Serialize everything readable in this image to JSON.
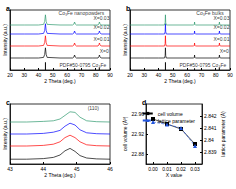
{
  "chart_data": [
    {
      "type": "line",
      "title": "a",
      "x_label": "2 Theta (deg.)",
      "y_label": "Intensity (a.u.)",
      "xlim": [
        20,
        90
      ],
      "xticks": [
        20,
        30,
        40,
        50,
        60,
        70,
        80,
        90
      ],
      "ylim": [
        0,
        100
      ],
      "tick_labels": "x",
      "grid": false,
      "x": [
        20,
        30,
        40,
        43.5,
        44.3,
        44.8,
        45.3,
        46,
        55,
        63.8,
        64.7,
        65.2,
        65.7,
        66.5,
        78,
        81.6,
        82.2,
        82.6,
        83.0,
        83.8,
        90
      ],
      "series": [
        {
          "color": "#000000",
          "values": [
            20,
            20,
            20,
            21,
            26,
            37,
            26,
            21,
            20,
            20,
            21.5,
            25,
            21.5,
            20,
            20,
            20,
            22,
            25,
            22,
            20,
            20
          ]
        },
        {
          "color": "#ff0000",
          "values": [
            40,
            40,
            40,
            41,
            46,
            57,
            46,
            41,
            40,
            40,
            41.5,
            45,
            41.5,
            40,
            40,
            40,
            42,
            45,
            42,
            40,
            40
          ]
        },
        {
          "color": "#0000ff",
          "values": [
            60,
            60,
            60,
            61,
            66,
            77,
            66,
            61,
            60,
            60,
            61.5,
            65,
            61.5,
            60,
            60,
            60,
            62,
            65,
            62,
            60,
            60
          ]
        },
        {
          "color": "#2e9a6e",
          "values": [
            75,
            75,
            75,
            76,
            81,
            92,
            81,
            76,
            75,
            75,
            76.5,
            80,
            76.5,
            75,
            75,
            75,
            77,
            80,
            77,
            75,
            75
          ]
        },
        {
          "type": "bar",
          "color": "#000000",
          "x": [
            44.8,
            65.2,
            82.5
          ],
          "values": [
            13,
            3,
            4
          ]
        }
      ],
      "annotations": [
        {
          "text": "Co₃Fe nanopowders",
          "x": 70,
          "y": 95
        },
        {
          "text": "X=0.03",
          "x": 84,
          "y": 86
        },
        {
          "text": "X=0.02",
          "x": 84,
          "y": 71
        },
        {
          "text": "X=0.01",
          "x": 84,
          "y": 51
        },
        {
          "text": "X=0",
          "x": 86,
          "y": 31
        },
        {
          "text": "PDF#50-0795 Co₃Fe",
          "x": 71,
          "y": 9
        }
      ]
    },
    {
      "type": "line",
      "title": "b",
      "x_label": "2 Theta (deg.)",
      "y_label": "Intensity (a.u.)",
      "xlim": [
        20,
        90
      ],
      "xticks": [
        20,
        30,
        40,
        50,
        60,
        70,
        80,
        90
      ],
      "ylim": [
        0,
        100
      ],
      "tick_labels": "x",
      "grid": false,
      "x": [
        20,
        30,
        40,
        44.2,
        44.6,
        44.8,
        45.0,
        45.4,
        55,
        64.6,
        65.0,
        65.2,
        65.4,
        65.8,
        78,
        82.0,
        82.4,
        82.6,
        82.8,
        83.2,
        90
      ],
      "series": [
        {
          "color": "#000000",
          "values": [
            20,
            20,
            20,
            20,
            24,
            37,
            24,
            20,
            20,
            20,
            21,
            25,
            21,
            20,
            20,
            20,
            21.5,
            25,
            21.5,
            20,
            20
          ]
        },
        {
          "color": "#ff0000",
          "values": [
            40,
            40,
            40,
            40,
            44,
            57,
            44,
            40,
            40,
            40,
            41,
            45,
            41,
            40,
            40,
            40,
            41.5,
            45,
            41.5,
            40,
            40
          ]
        },
        {
          "color": "#0000ff",
          "values": [
            60,
            60,
            60,
            60,
            64,
            77,
            64,
            60,
            60,
            60,
            61,
            65,
            61,
            60,
            60,
            60,
            61.5,
            65,
            61.5,
            60,
            60
          ]
        },
        {
          "color": "#2e9a6e",
          "values": [
            75,
            75,
            75,
            75,
            79,
            92,
            79,
            75,
            75,
            75,
            76,
            80,
            76,
            75,
            75,
            75,
            76.5,
            80,
            76.5,
            75,
            75
          ]
        },
        {
          "type": "bar",
          "color": "#000000",
          "x": [
            44.8,
            65.2,
            82.5
          ],
          "values": [
            13,
            3,
            4
          ]
        }
      ],
      "annotations": [
        {
          "text": "Co₃Fe bulks",
          "x": 76,
          "y": 95
        },
        {
          "text": "X=0.03",
          "x": 84,
          "y": 86
        },
        {
          "text": "X=0.02",
          "x": 84,
          "y": 71
        },
        {
          "text": "X=0.01",
          "x": 84,
          "y": 51
        },
        {
          "text": "X=0",
          "x": 86,
          "y": 31
        },
        {
          "text": "PDF#50-0795 Co₃Fe",
          "x": 71,
          "y": 9
        }
      ]
    },
    {
      "type": "line",
      "title": "c",
      "x_label": "2 Theta (deg.)",
      "y_label": "Intensity (a.u.)",
      "xlim": [
        43,
        46
      ],
      "xticks": [
        43,
        44,
        45,
        46
      ],
      "ylim": [
        0,
        100
      ],
      "tick_labels": "x",
      "grid": false,
      "x": [
        43,
        43.5,
        44,
        44.3,
        44.5,
        44.65,
        44.8,
        44.95,
        45.1,
        45.3,
        45.6,
        46
      ],
      "series": [
        {
          "color": "#000000",
          "values": [
            8,
            8,
            9,
            11,
            15,
            22,
            26,
            21,
            14,
            10,
            8.5,
            8
          ]
        },
        {
          "color": "#ff0000",
          "values": [
            30,
            30,
            31,
            33,
            37,
            44,
            48,
            44,
            37,
            32,
            30.5,
            30
          ]
        },
        {
          "color": "#0000ff",
          "values": [
            50,
            50,
            51,
            53,
            56,
            63,
            68,
            65,
            57,
            52,
            50.5,
            50
          ]
        },
        {
          "color": "#2e9a6e",
          "values": [
            70,
            70,
            71,
            72,
            75,
            81,
            87,
            86,
            78,
            72,
            70.5,
            70
          ]
        }
      ],
      "annotations": [
        {
          "text": "(110)",
          "x": 45.5,
          "y": 93
        }
      ]
    },
    {
      "type": "line",
      "title": "d",
      "x_label": "X value",
      "y_label": "cell volume (Å³)",
      "y2_label": "lattice parameter (Å)",
      "xlim": [
        -0.005,
        0.035
      ],
      "xticks": [
        {
          "value": 0,
          "label": "0.00"
        },
        {
          "value": 0.01,
          "label": "0.01"
        },
        {
          "value": 0.02,
          "label": "0.02"
        },
        {
          "value": 0.03,
          "label": "0.03"
        }
      ],
      "ylim": [
        22.86,
        22.98
      ],
      "yticks": [
        22.88,
        22.92,
        22.96
      ],
      "y2lim": [
        2.838,
        2.843
      ],
      "y2ticks": [
        2.839,
        2.84,
        2.841,
        2.842
      ],
      "legend": "upper right",
      "grid": false,
      "x": [
        0,
        0.01,
        0.02,
        0.03
      ],
      "series": [
        {
          "name": "cell volume",
          "color": "#000000",
          "marker": "square",
          "line_style": "solid",
          "values": [
            22.95,
            22.94,
            22.93,
            22.9
          ]
        },
        {
          "name": "lattice parameter",
          "color": "#2255dd",
          "marker": "triangle",
          "line_style": "dashed",
          "axis": "y2",
          "values": [
            2.8415,
            2.8413,
            2.841,
            2.8395
          ]
        }
      ]
    }
  ]
}
